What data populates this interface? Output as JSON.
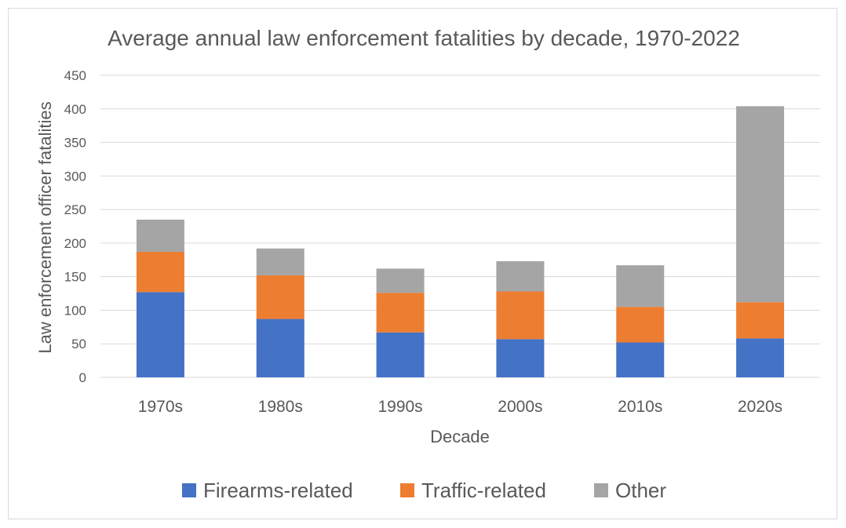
{
  "chart_data": {
    "type": "bar",
    "stacked": true,
    "title": "Average annual law enforcement fatalities by decade, 1970-2022",
    "xlabel": "Decade",
    "ylabel": "Law enforcement officer fatalities",
    "ylim": [
      0,
      450
    ],
    "yticks": [
      "0",
      "50",
      "100",
      "150",
      "200",
      "250",
      "300",
      "350",
      "400",
      "450"
    ],
    "grid": true,
    "legend_position": "bottom",
    "categories": [
      "1970s",
      "1980s",
      "1990s",
      "2000s",
      "2010s",
      "2020s"
    ],
    "series": [
      {
        "name": "Firearms-related",
        "color": "#4472c4",
        "values": [
          127,
          87,
          67,
          57,
          52,
          58
        ]
      },
      {
        "name": "Traffic-related",
        "color": "#ed7d31",
        "values": [
          60,
          65,
          59,
          71,
          53,
          54
        ]
      },
      {
        "name": "Other",
        "color": "#a5a5a5",
        "values": [
          48,
          40,
          36,
          45,
          62,
          292
        ]
      }
    ]
  }
}
